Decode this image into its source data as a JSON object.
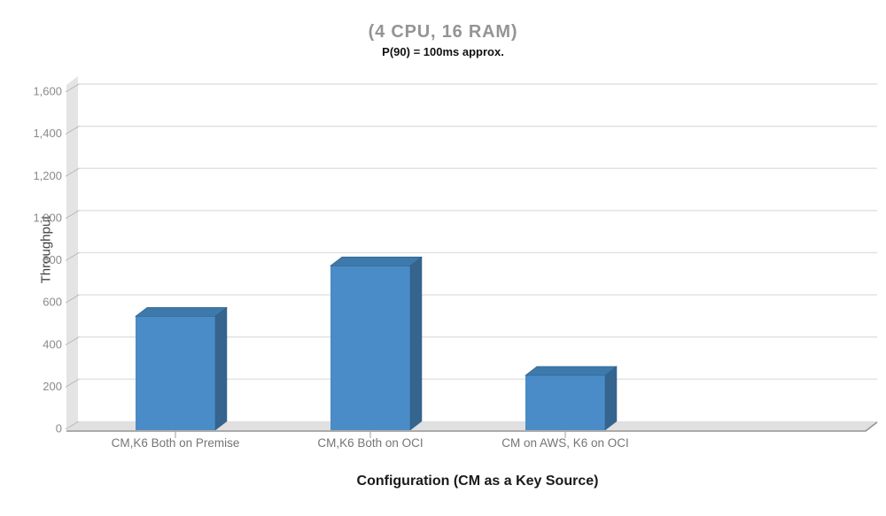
{
  "chart_data": {
    "type": "bar",
    "style": "3d-column",
    "title": "(4 CPU, 16 RAM)",
    "subtitle": "P(90) = 100ms approx.",
    "xlabel": "Configuration (CM as a Key Source)",
    "ylabel": "Throughput",
    "categories": [
      "CM,K6 Both on Premise",
      "CM,K6 Both on OCI",
      "CM on AWS, K6 on OCI"
    ],
    "values": [
      540,
      780,
      260
    ],
    "ylim": [
      0,
      1600
    ],
    "ytick_step": 200,
    "ytick_labels": [
      "0",
      "200",
      "400",
      "600",
      "800",
      "1,000",
      "1,200",
      "1,400",
      "1,600"
    ],
    "grid": true,
    "legend": "none",
    "colors": {
      "bar_front": "#4a8cc7",
      "bar_side": "#35658f",
      "bar_top": "#3d7aab",
      "bar_edge": "#2e5c85",
      "wall": "#e4e4e4",
      "floor": "#e0e0e0",
      "floor_edge": "#8f8f8f",
      "gridline": "#e2e2e2",
      "tick": "#9e9e9e",
      "tick_slash": "#b5b5b5",
      "title": "#949494",
      "subtitle": "#111111",
      "ytick_label": "#8a8a8a",
      "category_label": "#757575",
      "ylabel_color": "#424242",
      "xlabel_color": "#1a1a1a",
      "background": "#ffffff"
    }
  }
}
